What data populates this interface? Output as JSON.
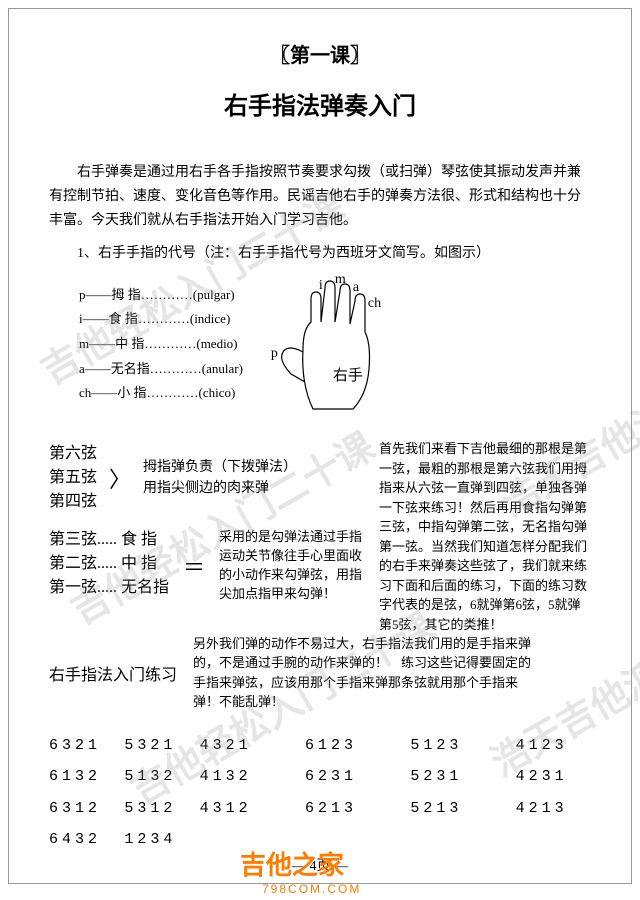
{
  "lesson_tag": "〖第一课〗",
  "title": "右手指法弹奏入门",
  "intro": "右手弹奏是通过用右手各手指按照节奏要求勾拨（或扫弹）琴弦使其振动发声并兼有控制节拍、速度、变化音色等作用。民谣吉他右手的弹奏方法很、形式和结构也十分丰富。今天我们就从右手指法开始入门学习吉他。",
  "sub1": "1、右手手指的代号（注：右手手指代号为西班牙文简写。如图示）",
  "fingers": [
    {
      "code": "p",
      "dash": "——",
      "name": "拇 指",
      "dots": "…………",
      "latin": "(pulgar)"
    },
    {
      "code": "i",
      "dash": "——",
      "name": "食 指",
      "dots": "…………",
      "latin": "(indice)"
    },
    {
      "code": "m",
      "dash": "——",
      "name": "中 指",
      "dots": "…………",
      "latin": "(medio)"
    },
    {
      "code": "a",
      "dash": "——",
      "name": "无名指",
      "dots": "…………",
      "latin": "(anular)"
    },
    {
      "code": "ch",
      "dash": "——",
      "name": "小 指",
      "dots": "…………",
      "latin": "(chico)"
    }
  ],
  "hand": {
    "labels": {
      "i": "i",
      "m": "m",
      "a": "a",
      "ch": "ch",
      "p": "p",
      "right": "右手"
    }
  },
  "strings456": [
    "第六弦",
    "第五弦",
    "第四弦"
  ],
  "thumb_note": [
    "拇指弹负责（下拨弹法）",
    "用指尖侧边的肉来弹"
  ],
  "right_text1": "首先我们来看下吉他最细的那根是第一弦，最粗的那根是第六弦我们用拇指来从六弦一直弹到四弦，单独各弹一下弦来练习！然后再用食指勾弹第三弦，中指勾弹第二弦，无名指勾弹第一弦。当然我们知道怎样分配我们的右手来弹奏这些弦了，我们就来练习下面和后面的练习，下面的练习数字代表的是弦，6就弹第6弦，5就弹第5弦，其它的类推！",
  "strings123": [
    "第三弦..... 食 指",
    "第二弦..... 中 指",
    "第一弦..... 无名指"
  ],
  "hook_note": "采用的是勾弹法通过手指运动关节像往手心里面收的小动作来勾弹弦，用指尖加点指甲来勾弹！",
  "practice_title": "右手指法入门练习",
  "practice_note": "另外我们弹的动作不易过大，右手指法我们用的是手指来弹的，不是通过手腕的动作来弹的！　练习这些记得要固定的手指来弹弦，应该用那个手指来弹那条弦就用那个手指来弹！不能乱弹！",
  "sequences": [
    [
      "6321",
      "5321",
      "4321",
      "6123",
      "5123",
      "4123"
    ],
    [
      "6132",
      "5132",
      "4132",
      "6231",
      "5231",
      "4231"
    ],
    [
      "6312",
      "5312",
      "4312",
      "6213",
      "5213",
      "4213"
    ],
    [
      "6432",
      "1234",
      "",
      "",
      "",
      ""
    ]
  ],
  "page_num": "— 4页 —",
  "logo": "吉他之家",
  "logo_sub": "798COM.COM",
  "watermark": "吉他轻松入门二十课",
  "watermark2": "浩天吉他派"
}
